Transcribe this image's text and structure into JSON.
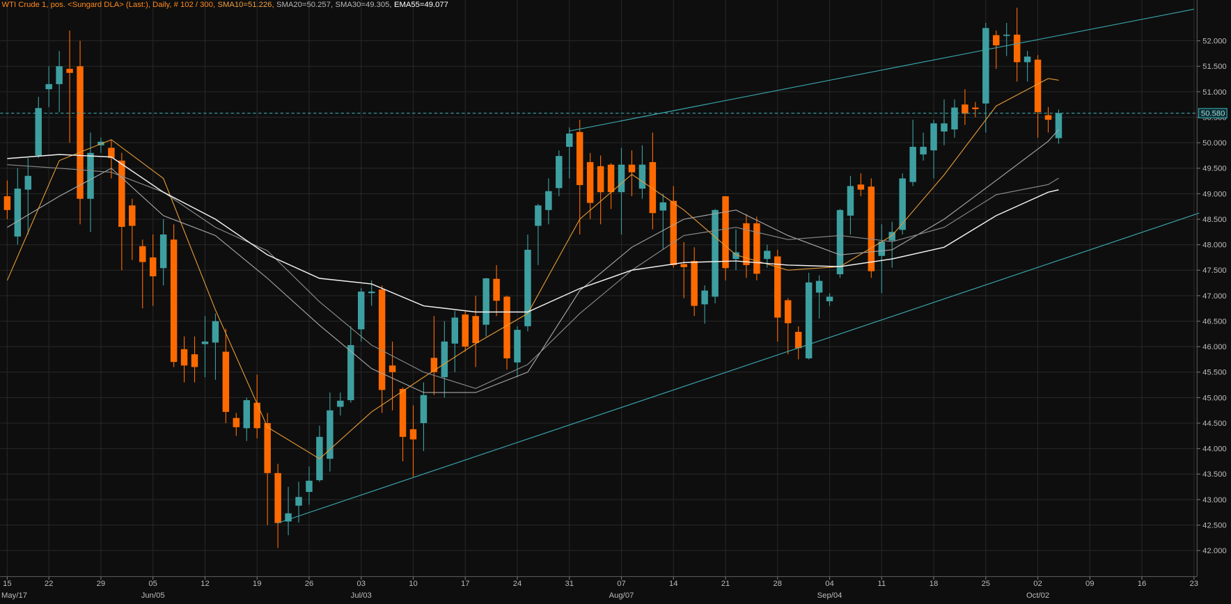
{
  "chart_data": {
    "type": "candlestick",
    "title": "WTI Crude 1, pos. <Sungard DLA> (Last:), Daily, # 102 / 300,",
    "title_color": "#ff8a1f",
    "up_color": "#3e9fa1",
    "down_color": "#ff6a00",
    "open": [
      48.95,
      48.16,
      49.08,
      49.75,
      51.05,
      51.15,
      51.45,
      51.5,
      48.9,
      49.95,
      49.9,
      49.65,
      48.77,
      47.97,
      47.75,
      47.54,
      48.1,
      45.95,
      45.85,
      46.05,
      46.08,
      45.9,
      44.6,
      44.4,
      44.9,
      44.5,
      43.52,
      42.57,
      42.88,
      43.15,
      43.38,
      43.8,
      44.82,
      44.95,
      46.34,
      47.05,
      47.12,
      45.63,
      45.17,
      44.38,
      44.5,
      45.78,
      45.4,
      46.06,
      46.63,
      46.6,
      46.43,
      47.33,
      46.98,
      45.69,
      46.4,
      48.37,
      48.68,
      49.11,
      49.92,
      50.21,
      49.62,
      49.54,
      49.57,
      49.03,
      49.57,
      49.1,
      49.62,
      48.67,
      48.86,
      47.62,
      47.68,
      46.83,
      46.98,
      48.95,
      47.72,
      48.42,
      48.42,
      47.72,
      47.77,
      46.91,
      46.29,
      45.77,
      47.06,
      46.89,
      47.42,
      48.57,
      49.18,
      49.14,
      47.78,
      48.08,
      48.29,
      49.23,
      49.77,
      49.85,
      50.22,
      50.26,
      50.75,
      50.69,
      50.77,
      52.11,
      52.1,
      52.12,
      51.58,
      51.63,
      50.54,
      50.09
    ],
    "high": [
      49.26,
      49.5,
      49.7,
      50.9,
      51.5,
      51.8,
      52.2,
      52.0,
      50.2,
      50.1,
      50.05,
      49.8,
      48.9,
      48.1,
      48.2,
      48.5,
      48.4,
      46.2,
      46.2,
      46.6,
      46.65,
      46.35,
      44.7,
      45.0,
      45.45,
      44.7,
      43.7,
      43.25,
      43.35,
      43.65,
      44.45,
      45.1,
      45.1,
      46.4,
      47.15,
      47.3,
      47.2,
      46.1,
      45.2,
      44.85,
      45.3,
      46.6,
      46.5,
      46.7,
      46.7,
      47.0,
      47.35,
      47.6,
      47.0,
      46.4,
      48.2,
      48.8,
      49.3,
      49.85,
      50.3,
      50.45,
      49.8,
      49.75,
      49.6,
      49.9,
      49.85,
      49.95,
      50.2,
      49.0,
      49.15,
      48.05,
      47.95,
      47.2,
      48.7,
      48.95,
      48.3,
      48.6,
      48.55,
      48.0,
      47.9,
      46.95,
      46.4,
      47.45,
      47.4,
      47.05,
      48.7,
      49.35,
      49.4,
      49.3,
      48.4,
      48.45,
      49.4,
      50.45,
      50.2,
      50.45,
      50.85,
      50.85,
      51.05,
      50.8,
      52.35,
      52.2,
      52.35,
      52.65,
      51.8,
      51.72,
      50.7,
      50.65
    ],
    "low": [
      48.5,
      48.0,
      48.2,
      49.7,
      50.7,
      50.6,
      50.0,
      48.4,
      48.25,
      49.8,
      49.3,
      47.5,
      47.7,
      46.75,
      46.8,
      47.2,
      45.6,
      45.3,
      45.3,
      45.4,
      45.35,
      44.5,
      44.25,
      44.15,
      44.2,
      42.5,
      42.05,
      42.3,
      42.55,
      42.9,
      43.35,
      43.55,
      44.65,
      44.9,
      46.1,
      46.8,
      44.7,
      44.75,
      43.75,
      43.45,
      43.95,
      45.05,
      45.0,
      45.5,
      45.9,
      45.6,
      46.2,
      46.6,
      45.55,
      45.4,
      46.3,
      47.6,
      48.4,
      48.95,
      49.3,
      48.2,
      48.5,
      48.4,
      48.7,
      48.2,
      48.95,
      48.9,
      48.3,
      47.9,
      47.55,
      46.95,
      46.6,
      46.45,
      46.85,
      47.3,
      47.5,
      47.35,
      47.3,
      47.55,
      46.1,
      45.85,
      45.75,
      45.75,
      46.55,
      46.8,
      47.35,
      48.2,
      48.95,
      47.35,
      47.05,
      47.55,
      48.2,
      49.15,
      49.65,
      49.3,
      49.95,
      50.1,
      50.35,
      50.5,
      50.2,
      51.45,
      51.7,
      51.2,
      51.2,
      50.1,
      50.2,
      49.98
    ],
    "close": [
      48.68,
      49.1,
      49.35,
      50.68,
      51.15,
      51.5,
      51.37,
      48.9,
      49.8,
      50.02,
      49.7,
      48.35,
      48.37,
      47.66,
      47.38,
      48.2,
      45.7,
      45.63,
      45.6,
      46.1,
      46.5,
      44.72,
      44.42,
      44.95,
      44.4,
      43.52,
      42.54,
      42.73,
      43.05,
      43.37,
      44.23,
      44.75,
      44.94,
      46.03,
      47.08,
      47.08,
      45.15,
      45.5,
      44.23,
      44.18,
      45.05,
      45.5,
      46.1,
      46.57,
      46.0,
      46.07,
      47.34,
      46.9,
      45.77,
      46.33,
      47.9,
      48.77,
      49.05,
      49.74,
      50.18,
      49.17,
      48.82,
      49.03,
      49.03,
      49.57,
      49.42,
      49.57,
      48.62,
      48.83,
      47.6,
      47.56,
      46.8,
      47.1,
      48.68,
      47.54,
      47.85,
      47.6,
      47.43,
      47.88,
      46.57,
      46.46,
      45.97,
      47.26,
      47.29,
      46.98,
      48.68,
      49.15,
      49.08,
      47.48,
      48.06,
      48.25,
      49.3,
      49.92,
      49.92,
      50.38,
      50.38,
      50.69,
      50.57,
      50.66,
      52.25,
      51.91,
      52.12,
      51.58,
      51.69,
      50.6,
      50.45,
      50.58
    ],
    "overlays": [
      {
        "name": "SMA10=51.226,",
        "color": "#e59a36",
        "label_color": "#f0a040",
        "x": [
          0,
          5,
          10,
          15,
          20,
          25,
          30,
          35,
          40,
          45,
          50,
          55,
          60,
          65,
          70,
          75,
          80,
          85,
          90,
          95,
          100,
          101
        ],
        "values": [
          47.3,
          49.65,
          50.06,
          49.3,
          46.72,
          44.42,
          43.8,
          44.72,
          45.4,
          46.06,
          46.65,
          48.5,
          49.38,
          48.68,
          47.8,
          47.5,
          47.57,
          48.18,
          49.37,
          50.72,
          51.26,
          51.226
        ]
      },
      {
        "name": "SMA20=50.257,",
        "color": "#a8a8a8",
        "label_color": "#b8b8b8",
        "x": [
          0,
          5,
          10,
          15,
          20,
          25,
          30,
          35,
          40,
          45,
          50,
          55,
          60,
          65,
          70,
          75,
          80,
          85,
          90,
          95,
          100,
          101
        ],
        "values": [
          48.34,
          48.95,
          49.5,
          48.57,
          48.18,
          47.34,
          46.42,
          45.57,
          45.1,
          45.1,
          45.5,
          47.1,
          47.95,
          48.5,
          48.68,
          48.18,
          47.8,
          47.9,
          48.5,
          49.26,
          50.03,
          50.257
        ]
      },
      {
        "name": "SMA30=49.305,",
        "color": "#8c8c8c",
        "label_color": "#b8b8b8",
        "x": [
          0,
          5,
          10,
          15,
          20,
          25,
          30,
          35,
          40,
          45,
          50,
          55,
          60,
          65,
          70,
          75,
          80,
          85,
          90,
          95,
          100,
          101
        ],
        "values": [
          49.57,
          49.5,
          49.42,
          49.03,
          48.34,
          47.88,
          46.88,
          46.03,
          45.5,
          45.18,
          45.65,
          46.65,
          47.5,
          48.18,
          48.34,
          48.1,
          48.18,
          48.06,
          48.34,
          48.98,
          49.18,
          49.305
        ]
      },
      {
        "name": "EMA55=49.077",
        "color": "#f2f2f2",
        "label_color": "#ffffff",
        "x": [
          0,
          5,
          10,
          15,
          20,
          25,
          30,
          35,
          40,
          45,
          50,
          55,
          60,
          65,
          70,
          75,
          80,
          85,
          90,
          95,
          100,
          101
        ],
        "values": [
          49.69,
          49.77,
          49.72,
          49.03,
          48.5,
          47.8,
          47.34,
          47.23,
          46.8,
          46.68,
          46.68,
          47.14,
          47.5,
          47.65,
          47.68,
          47.6,
          47.57,
          47.72,
          47.95,
          48.57,
          49.03,
          49.077
        ]
      }
    ],
    "trendlines": [
      {
        "color": "#3aa6ad",
        "x": [
          54,
          114
        ],
        "values": [
          50.23,
          52.62
        ]
      },
      {
        "color": "#3aa6ad",
        "x": [
          26,
          114.5
        ],
        "values": [
          42.54,
          48.62
        ]
      }
    ],
    "price_line": {
      "value": 50.58,
      "label": "50.580",
      "color": "#3aa6ad"
    },
    "xlim": [
      -0.68,
      114.3
    ],
    "ylim": [
      41.49,
      52.8
    ],
    "yticks": [
      {
        "value": 42,
        "label": "42.000"
      },
      {
        "value": 42.5,
        "label": "42.500"
      },
      {
        "value": 43,
        "label": "43.000"
      },
      {
        "value": 43.5,
        "label": "43.500"
      },
      {
        "value": 44,
        "label": "44.000"
      },
      {
        "value": 44.5,
        "label": "44.500"
      },
      {
        "value": 45,
        "label": "45.000"
      },
      {
        "value": 45.5,
        "label": "45.500"
      },
      {
        "value": 46,
        "label": "46.000"
      },
      {
        "value": 46.5,
        "label": "46.500"
      },
      {
        "value": 47,
        "label": "47.000"
      },
      {
        "value": 47.5,
        "label": "47.500"
      },
      {
        "value": 48,
        "label": "48.000"
      },
      {
        "value": 48.5,
        "label": "48.500"
      },
      {
        "value": 49,
        "label": "49.000"
      },
      {
        "value": 49.5,
        "label": "49.500"
      },
      {
        "value": 50,
        "label": "50.000"
      },
      {
        "value": 50.5,
        "label": "50.500"
      },
      {
        "value": 51,
        "label": "51.000"
      },
      {
        "value": 51.5,
        "label": "51.500"
      },
      {
        "value": 52,
        "label": "52.000"
      }
    ],
    "xticks": [
      {
        "value": 0,
        "label": "15"
      },
      {
        "value": 4,
        "label": "22"
      },
      {
        "value": 9,
        "label": "29"
      },
      {
        "value": 14,
        "label": "05"
      },
      {
        "value": 19,
        "label": "12"
      },
      {
        "value": 24,
        "label": "19"
      },
      {
        "value": 29,
        "label": "26"
      },
      {
        "value": 34,
        "label": "03"
      },
      {
        "value": 39,
        "label": "10"
      },
      {
        "value": 44,
        "label": "17"
      },
      {
        "value": 49,
        "label": "24"
      },
      {
        "value": 54,
        "label": "31"
      },
      {
        "value": 59,
        "label": "07"
      },
      {
        "value": 64,
        "label": "14"
      },
      {
        "value": 69,
        "label": "21"
      },
      {
        "value": 74,
        "label": "28"
      },
      {
        "value": 79,
        "label": "04"
      },
      {
        "value": 84,
        "label": "11"
      },
      {
        "value": 89,
        "label": "18"
      },
      {
        "value": 94,
        "label": "25"
      },
      {
        "value": 99,
        "label": "02"
      },
      {
        "value": 104,
        "label": "09"
      },
      {
        "value": 109,
        "label": "16"
      },
      {
        "value": 114,
        "label": "23"
      }
    ],
    "xticks2": [
      {
        "value": 0,
        "label": "May/17"
      },
      {
        "value": 14,
        "label": "Jun/05"
      },
      {
        "value": 34,
        "label": "Jul/03"
      },
      {
        "value": 59,
        "label": "Aug/07"
      },
      {
        "value": 79,
        "label": "Sep/04"
      },
      {
        "value": 99,
        "label": "Oct/02"
      }
    ],
    "grid": true
  }
}
